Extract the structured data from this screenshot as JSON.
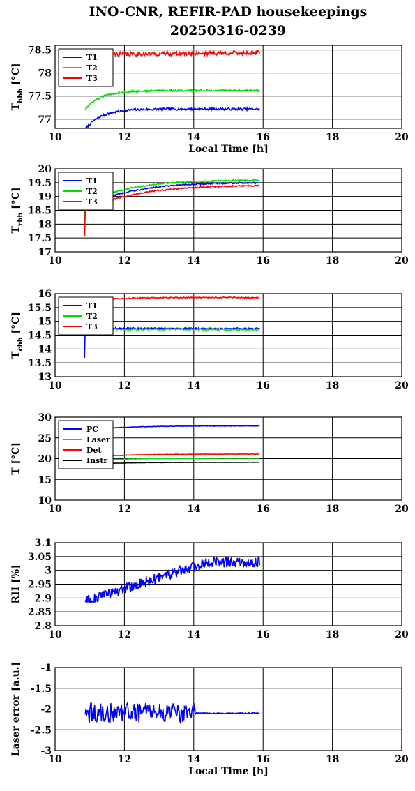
{
  "title_line1": "INO-CNR, REFIR-PAD housekeepings",
  "title_line2": "20250316-0239",
  "chart_data": [
    {
      "type": "line",
      "ylabel": "T",
      "ylabel_sub": "hbb",
      "ylabel_unit": " [°C]",
      "xlabel": "Local Time [h]",
      "xlim": [
        10,
        20
      ],
      "ylim": [
        76.8,
        78.6
      ],
      "xticks": [
        "10",
        "12",
        "14",
        "16",
        "18",
        "20"
      ],
      "yticks": [
        {
          "v": 77,
          "label": "77"
        },
        {
          "v": 77.5,
          "label": "77.5"
        },
        {
          "v": 78,
          "label": "78"
        },
        {
          "v": 78.5,
          "label": "78.5"
        }
      ],
      "grid": true,
      "legend_position": "top-left",
      "series": [
        {
          "name": "T1",
          "color": "#0000ff",
          "t0": 10.87,
          "t1": 15.9,
          "shape": "saturate",
          "start": 76.78,
          "end": 77.22,
          "tau": 0.45,
          "noise": 0.025,
          "spike": null
        },
        {
          "name": "T2",
          "color": "#00e000",
          "t0": 10.87,
          "t1": 15.9,
          "shape": "saturate",
          "start": 77.22,
          "end": 77.62,
          "tau": 0.45,
          "noise": 0.02,
          "spike": null
        },
        {
          "name": "T3",
          "color": "#ff0000",
          "t0": 10.87,
          "t1": 15.9,
          "shape": "flat",
          "start": 78.4,
          "end": 78.44,
          "tau": 1,
          "noise": 0.045,
          "spike": null
        }
      ]
    },
    {
      "type": "line",
      "ylabel": "T",
      "ylabel_sub": "rbb",
      "ylabel_unit": " [°C]",
      "xlabel": "",
      "xlim": [
        10,
        20
      ],
      "ylim": [
        17,
        20
      ],
      "xticks": [
        "10",
        "12",
        "14",
        "16",
        "18",
        "20"
      ],
      "yticks": [
        {
          "v": 17,
          "label": "17"
        },
        {
          "v": 17.5,
          "label": "17.5"
        },
        {
          "v": 18,
          "label": "18"
        },
        {
          "v": 18.5,
          "label": "18.5"
        },
        {
          "v": 19,
          "label": "19"
        },
        {
          "v": 19.5,
          "label": "19.5"
        },
        {
          "v": 20,
          "label": "20"
        }
      ],
      "grid": true,
      "legend_position": "top-left",
      "series": [
        {
          "name": "T1",
          "color": "#0000ff",
          "t0": 10.87,
          "t1": 15.9,
          "shape": "saturate",
          "start": 18.62,
          "end": 19.52,
          "tau": 1.3,
          "noise": 0.025,
          "spike": [
            17.6,
            18.62
          ]
        },
        {
          "name": "T2",
          "color": "#00e000",
          "t0": 10.87,
          "t1": 15.9,
          "shape": "saturate",
          "start": 18.72,
          "end": 19.6,
          "tau": 1.2,
          "noise": 0.025,
          "spike": [
            17.7,
            18.72
          ]
        },
        {
          "name": "T3",
          "color": "#ff0000",
          "t0": 10.87,
          "t1": 15.9,
          "shape": "saturate",
          "start": 18.48,
          "end": 19.42,
          "tau": 1.4,
          "noise": 0.025,
          "spike": [
            17.55,
            18.48
          ]
        }
      ]
    },
    {
      "type": "line",
      "ylabel": "T",
      "ylabel_sub": "cbb",
      "ylabel_unit": " [°C]",
      "xlabel": "",
      "xlim": [
        10,
        20
      ],
      "ylim": [
        13,
        16
      ],
      "xticks": [
        "10",
        "12",
        "14",
        "16",
        "18",
        "20"
      ],
      "yticks": [
        {
          "v": 13,
          "label": "13"
        },
        {
          "v": 13.5,
          "label": "13.5"
        },
        {
          "v": 14,
          "label": "14"
        },
        {
          "v": 14.5,
          "label": "14.5"
        },
        {
          "v": 15,
          "label": "15"
        },
        {
          "v": 15.5,
          "label": "15.5"
        },
        {
          "v": 16,
          "label": "16"
        }
      ],
      "grid": true,
      "legend_position": "top-left",
      "series": [
        {
          "name": "T1",
          "color": "#0000ff",
          "t0": 10.87,
          "t1": 15.9,
          "shape": "flat",
          "start": 14.74,
          "end": 14.74,
          "tau": 1,
          "noise": 0.03,
          "spike": [
            13.68,
            14.74
          ]
        },
        {
          "name": "T2",
          "color": "#00e000",
          "t0": 10.87,
          "t1": 15.9,
          "shape": "flat",
          "start": 14.72,
          "end": 14.7,
          "tau": 1,
          "noise": 0.03,
          "spike": null
        },
        {
          "name": "T3",
          "color": "#ff0000",
          "t0": 10.87,
          "t1": 15.9,
          "shape": "saturate",
          "start": 15.72,
          "end": 15.86,
          "tau": 0.8,
          "noise": 0.02,
          "spike": null
        }
      ]
    },
    {
      "type": "line",
      "ylabel": "T [°C]",
      "ylabel_sub": "",
      "ylabel_unit": "",
      "xlabel": "",
      "xlim": [
        10,
        20
      ],
      "ylim": [
        10,
        30
      ],
      "xticks": [
        "10",
        "12",
        "14",
        "16",
        "18",
        "20"
      ],
      "yticks": [
        {
          "v": 10,
          "label": "10"
        },
        {
          "v": 15,
          "label": "15"
        },
        {
          "v": 20,
          "label": "20"
        },
        {
          "v": 25,
          "label": "25"
        },
        {
          "v": 30,
          "label": "30"
        }
      ],
      "grid": true,
      "legend_position": "top-left",
      "series": [
        {
          "name": "PC",
          "color": "#0000ff",
          "t0": 10.87,
          "t1": 15.9,
          "shape": "saturate",
          "start": 26.8,
          "end": 27.9,
          "tau": 1,
          "noise": 0.05,
          "spike": null
        },
        {
          "name": "Laser",
          "color": "#00e000",
          "t0": 10.87,
          "t1": 15.9,
          "shape": "saturate",
          "start": 19.4,
          "end": 20.1,
          "tau": 1,
          "noise": 0.05,
          "spike": null
        },
        {
          "name": "Det",
          "color": "#ff0000",
          "t0": 10.87,
          "t1": 15.9,
          "shape": "saturate",
          "start": 20.2,
          "end": 21.1,
          "tau": 1,
          "noise": 0.05,
          "spike": null
        },
        {
          "name": "Instr",
          "color": "#000000",
          "t0": 10.87,
          "t1": 15.9,
          "shape": "saturate",
          "start": 18.6,
          "end": 19.1,
          "tau": 1,
          "noise": 0.04,
          "spike": null
        }
      ]
    },
    {
      "type": "line",
      "ylabel": "RH [%]",
      "ylabel_sub": "",
      "ylabel_unit": "",
      "xlabel": "",
      "xlim": [
        10,
        20
      ],
      "ylim": [
        2.8,
        3.1
      ],
      "xticks": [
        "10",
        "12",
        "14",
        "16",
        "18",
        "20"
      ],
      "yticks": [
        {
          "v": 2.8,
          "label": "2.8"
        },
        {
          "v": 2.85,
          "label": "2.85"
        },
        {
          "v": 2.9,
          "label": "2.9"
        },
        {
          "v": 2.95,
          "label": "2.95"
        },
        {
          "v": 3,
          "label": "3"
        },
        {
          "v": 3.05,
          "label": "3.05"
        },
        {
          "v": 3.1,
          "label": "3.1"
        }
      ],
      "grid": true,
      "legend_position": "none",
      "series": [
        {
          "name": "",
          "color": "#0000ff",
          "t0": 10.87,
          "t1": 15.9,
          "shape": "rh",
          "start": 2.89,
          "end": 3.03,
          "tau": 1,
          "noise": 0.02,
          "spike": null
        }
      ]
    },
    {
      "type": "line",
      "ylabel": "Laser error [a.u.]",
      "ylabel_sub": "",
      "ylabel_unit": "",
      "xlabel": "Local Time [h]",
      "xlim": [
        10,
        20
      ],
      "ylim": [
        -3,
        -1
      ],
      "xticks": [
        "10",
        "12",
        "14",
        "16",
        "18",
        "20"
      ],
      "yticks": [
        {
          "v": -3,
          "label": "-3"
        },
        {
          "v": -2.5,
          "label": "-2.5"
        },
        {
          "v": -2,
          "label": "-2"
        },
        {
          "v": -1.5,
          "label": "-1.5"
        },
        {
          "v": -1,
          "label": "-1"
        }
      ],
      "grid": true,
      "legend_position": "none",
      "series": [
        {
          "name": "",
          "color": "#0000ff",
          "t0": 10.87,
          "t1": 15.9,
          "shape": "laser",
          "start": -2.1,
          "end": -2.08,
          "tau": 1,
          "noise": 0.25,
          "spike": null
        }
      ]
    }
  ]
}
